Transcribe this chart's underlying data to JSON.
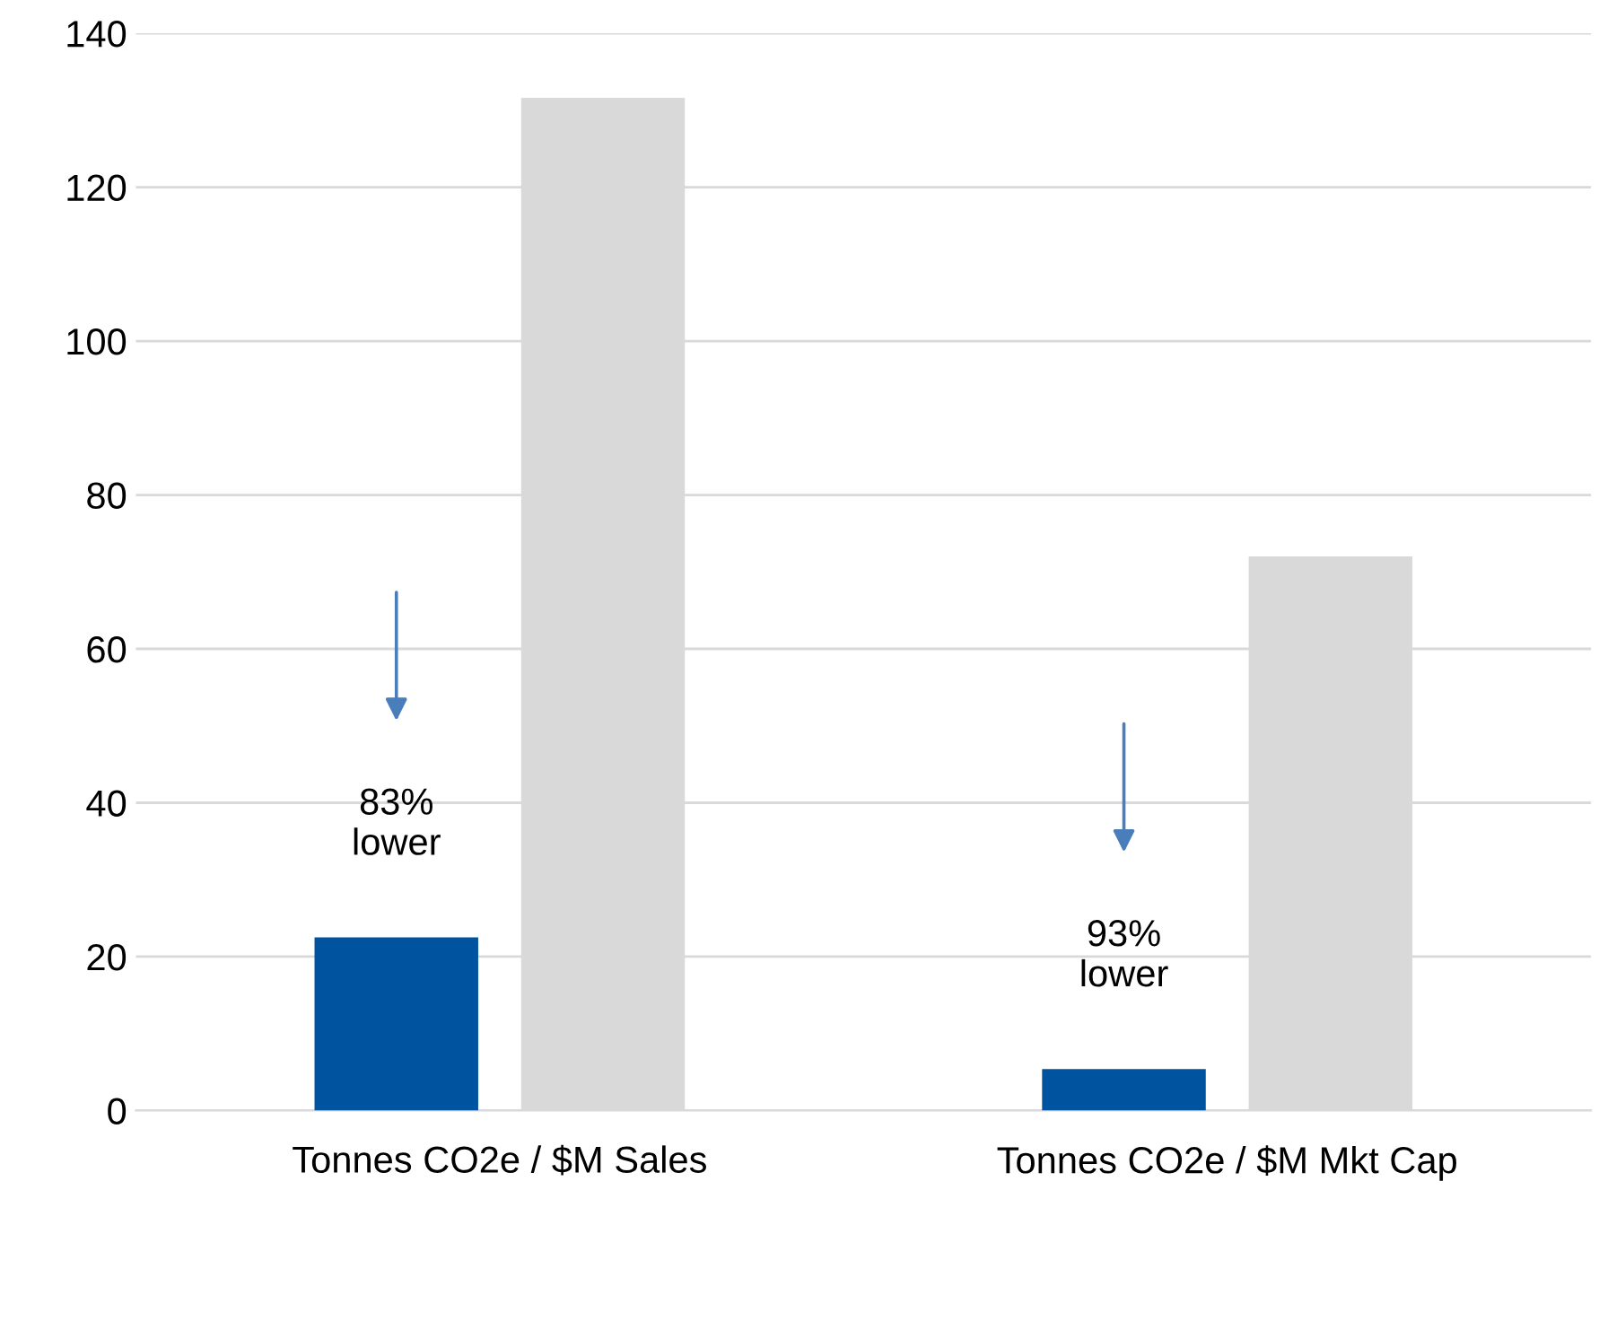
{
  "chart_data": {
    "type": "bar",
    "categories": [
      "Tonnes CO2e / $M Sales",
      "Tonnes CO2e / $M Mkt Cap"
    ],
    "series": [
      {
        "color": "#00539f",
        "values": [
          22.5,
          5.4
        ]
      },
      {
        "color": "#d9d9d9",
        "values": [
          131.6,
          72.0
        ]
      }
    ],
    "ylim": [
      0,
      140
    ],
    "yticks": [
      0,
      20,
      40,
      60,
      80,
      100,
      120,
      140
    ],
    "grid": "y",
    "annotations": [
      "83%\nlower",
      "93%\nlower"
    ]
  }
}
